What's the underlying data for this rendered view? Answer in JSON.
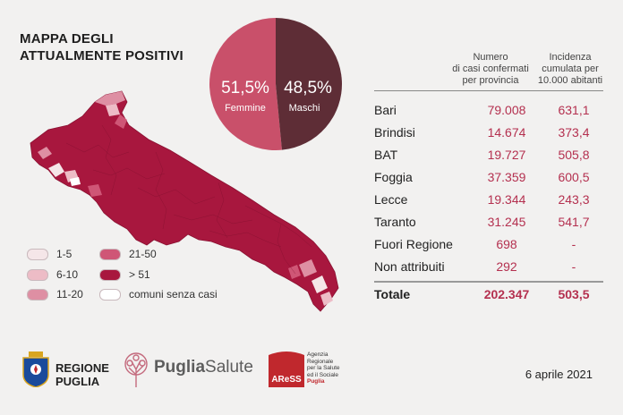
{
  "title": {
    "line1": "MAPPA DEGLI",
    "line2": "ATTUALMENTE POSITIVI"
  },
  "pie": {
    "female": {
      "pct": "51,5%",
      "label": "Femmine",
      "value": 51.5,
      "color": "#c9506a"
    },
    "male": {
      "pct": "48,5%",
      "label": "Maschi",
      "value": 48.5,
      "color": "#5e2d36"
    }
  },
  "legend": [
    {
      "label": "1-5",
      "color": "#f5e6e8"
    },
    {
      "label": "21-50",
      "color": "#cf5676"
    },
    {
      "label": "6-10",
      "color": "#edbcc6"
    },
    {
      "label": "> 51",
      "color": "#a8173e"
    },
    {
      "label": "11-20",
      "color": "#de8fa3"
    },
    {
      "label": "comuni senza casi",
      "color": "#ffffff"
    }
  ],
  "table": {
    "col_cases": [
      "Numero",
      "di casi confermati",
      "per provincia"
    ],
    "col_incidence": [
      "Incidenza",
      "cumulata per",
      "10.000 abitanti"
    ],
    "rows": [
      {
        "name": "Bari",
        "cases": "79.008",
        "inc": "631,1"
      },
      {
        "name": "Brindisi",
        "cases": "14.674",
        "inc": "373,4"
      },
      {
        "name": "BAT",
        "cases": "19.727",
        "inc": "505,8"
      },
      {
        "name": "Foggia",
        "cases": "37.359",
        "inc": "600,5"
      },
      {
        "name": "Lecce",
        "cases": "19.344",
        "inc": "243,3"
      },
      {
        "name": "Taranto",
        "cases": "31.245",
        "inc": "541,7"
      },
      {
        "name": "Fuori Regione",
        "cases": "698",
        "inc": "-"
      },
      {
        "name": "Non attribuiti",
        "cases": "292",
        "inc": "-"
      }
    ],
    "total": {
      "name": "Totale",
      "cases": "202.347",
      "inc": "503,5"
    }
  },
  "footer": {
    "regione_line1": "REGIONE",
    "regione_line2": "PUGLIA",
    "puglia_salute_bold": "Puglia",
    "puglia_salute_light": "Salute",
    "aress_logo": "AReSS",
    "aress_lines": [
      "Agenzia",
      "Regionale",
      "per la Salute",
      "ed il Sociale",
      "Puglia"
    ],
    "date": "6 aprile 2021"
  },
  "colors": {
    "accent": "#b4304f",
    "map_fill": "#a8173e",
    "background": "#f2f1f0"
  }
}
